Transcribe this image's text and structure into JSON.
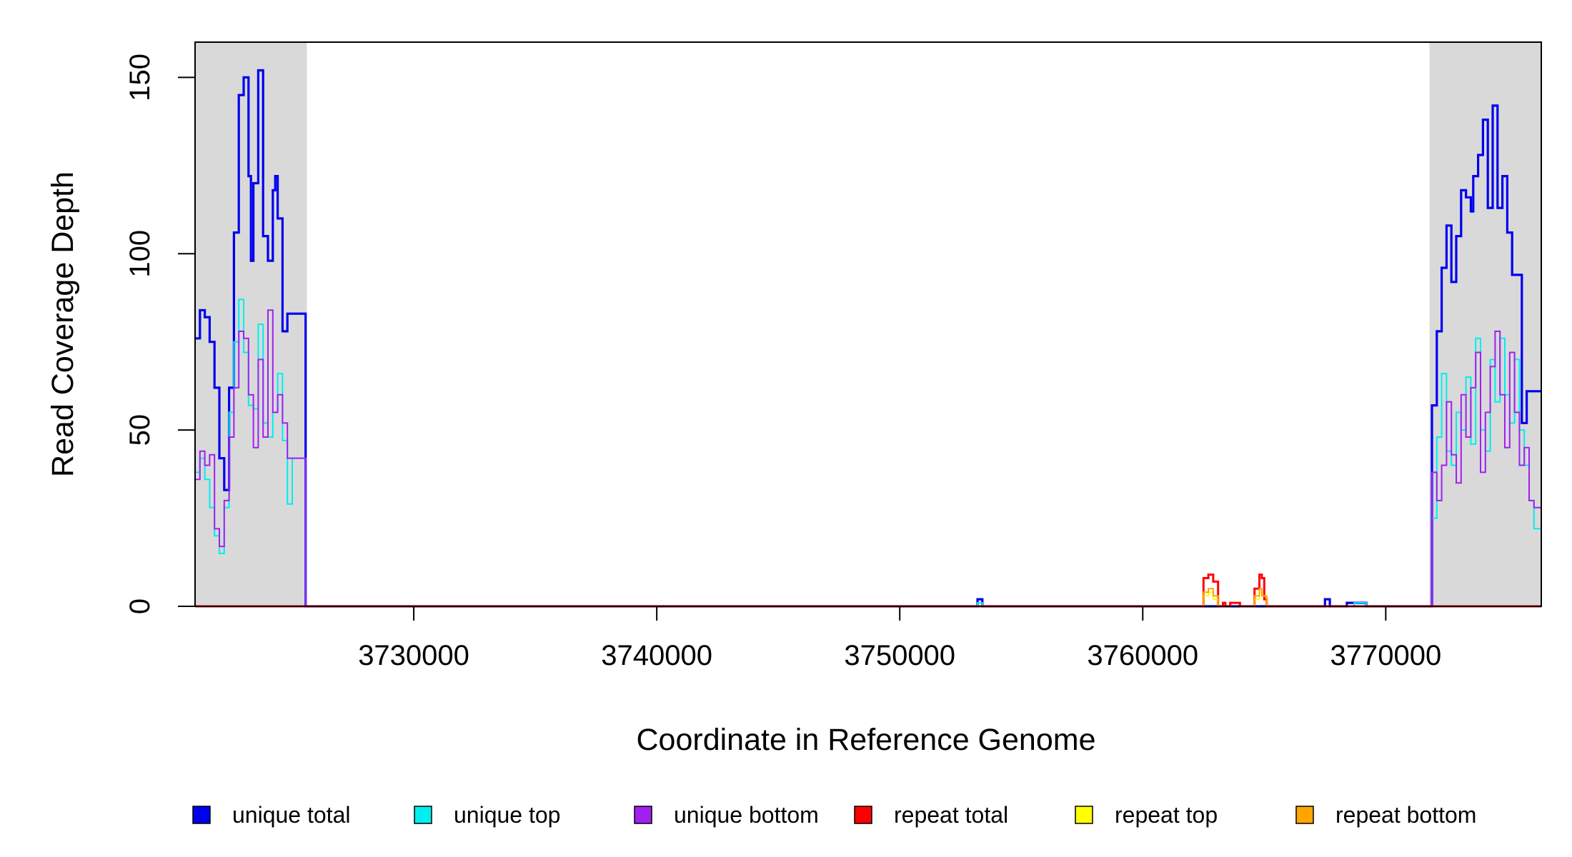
{
  "chart_data": {
    "type": "line",
    "xlabel": "Coordinate in Reference Genome",
    "ylabel": "Read Coverage Depth",
    "xlim": [
      3721000,
      3776400
    ],
    "ylim": [
      0,
      160
    ],
    "x_ticks": [
      3730000,
      3740000,
      3750000,
      3760000,
      3770000
    ],
    "x_tick_labels": [
      "3730000",
      "3740000",
      "3750000",
      "3760000",
      "3770000"
    ],
    "y_ticks": [
      0,
      50,
      100,
      150
    ],
    "y_tick_labels": [
      "0",
      "50",
      "100",
      "150"
    ],
    "grid": false,
    "shaded_regions": [
      {
        "x_start": 3721000,
        "x_end": 3725600,
        "color": "#d9d9d9"
      },
      {
        "x_start": 3771800,
        "x_end": 3776400,
        "color": "#d9d9d9"
      }
    ],
    "legend_position": "bottom",
    "series": [
      {
        "name": "unique total",
        "color": "#0000ee",
        "x": [
          3721000,
          3721200,
          3721400,
          3721600,
          3721800,
          3722000,
          3722200,
          3722400,
          3722600,
          3722800,
          3723000,
          3723200,
          3723300,
          3723400,
          3723600,
          3723800,
          3724000,
          3724200,
          3724300,
          3724400,
          3724600,
          3724800,
          3725000,
          3725200,
          3725400,
          3725500,
          3725550,
          3725650,
          3753000,
          3753200,
          3753400,
          3753600,
          3767400,
          3767500,
          3767700,
          3768400,
          3769000,
          3769200,
          3771800,
          3771900,
          3772100,
          3772300,
          3772500,
          3772700,
          3772900,
          3773100,
          3773300,
          3773500,
          3773600,
          3773800,
          3774000,
          3774200,
          3774400,
          3774600,
          3774800,
          3775000,
          3775200,
          3775400,
          3775600,
          3775800,
          3776000,
          3776200,
          3776400
        ],
        "y": [
          76,
          84,
          82,
          75,
          62,
          42,
          33,
          62,
          106,
          145,
          150,
          122,
          98,
          120,
          152,
          105,
          98,
          118,
          122,
          110,
          78,
          83,
          83,
          83,
          83,
          83,
          0,
          0,
          0,
          2,
          0,
          0,
          0,
          2,
          0,
          1,
          1,
          0,
          0,
          57,
          78,
          96,
          108,
          92,
          105,
          118,
          116,
          112,
          122,
          128,
          138,
          113,
          142,
          113,
          122,
          106,
          94,
          94,
          52,
          61,
          61,
          61,
          61
        ]
      },
      {
        "name": "unique top",
        "color": "#00eeee",
        "x": [
          3721000,
          3721200,
          3721400,
          3721600,
          3721800,
          3722000,
          3722200,
          3722400,
          3722600,
          3722800,
          3723000,
          3723200,
          3723400,
          3723600,
          3723800,
          3724000,
          3724200,
          3724400,
          3724600,
          3724800,
          3725000,
          3725200,
          3725400,
          3725550,
          3725650,
          3753000,
          3753200,
          3753400,
          3768500,
          3768700,
          3769000,
          3769200,
          3771800,
          3771900,
          3772100,
          3772300,
          3772500,
          3772700,
          3772900,
          3773100,
          3773300,
          3773500,
          3773700,
          3773900,
          3774100,
          3774300,
          3774500,
          3774700,
          3774900,
          3775100,
          3775300,
          3775500,
          3775700,
          3775900,
          3776100,
          3776200,
          3776400
        ],
        "y": [
          38,
          42,
          36,
          28,
          20,
          15,
          28,
          55,
          75,
          87,
          72,
          57,
          56,
          80,
          52,
          48,
          55,
          66,
          47,
          29,
          42,
          42,
          42,
          0,
          0,
          0,
          1,
          0,
          0,
          1,
          1,
          0,
          0,
          25,
          48,
          66,
          44,
          40,
          55,
          50,
          65,
          46,
          76,
          50,
          44,
          70,
          58,
          76,
          60,
          52,
          70,
          50,
          40,
          30,
          22,
          22,
          22
        ]
      },
      {
        "name": "unique bottom",
        "color": "#a020f0",
        "x": [
          3721000,
          3721200,
          3721400,
          3721600,
          3721800,
          3722000,
          3722200,
          3722400,
          3722600,
          3722800,
          3723000,
          3723200,
          3723400,
          3723600,
          3723800,
          3724000,
          3724200,
          3724400,
          3724600,
          3724800,
          3725000,
          3725200,
          3725400,
          3725550,
          3725650,
          3771800,
          3771900,
          3772100,
          3772300,
          3772500,
          3772700,
          3772900,
          3773100,
          3773300,
          3773500,
          3773700,
          3773900,
          3774100,
          3774300,
          3774500,
          3774700,
          3774900,
          3775100,
          3775300,
          3775500,
          3775700,
          3775900,
          3776100,
          3776200,
          3776400
        ],
        "y": [
          36,
          44,
          40,
          43,
          22,
          17,
          30,
          48,
          62,
          78,
          76,
          60,
          45,
          70,
          48,
          84,
          55,
          60,
          52,
          42,
          42,
          42,
          42,
          0,
          0,
          0,
          38,
          30,
          40,
          58,
          43,
          35,
          60,
          48,
          62,
          72,
          38,
          55,
          68,
          78,
          60,
          45,
          72,
          55,
          40,
          45,
          30,
          28,
          28,
          28
        ]
      },
      {
        "name": "repeat total",
        "color": "#ff0000",
        "x": [
          3721000,
          3762400,
          3762500,
          3762700,
          3762900,
          3763100,
          3763300,
          3763400,
          3763600,
          3763800,
          3764000,
          3764500,
          3764600,
          3764800,
          3764900,
          3765000,
          3765100,
          3776400
        ],
        "y": [
          0,
          0,
          8,
          9,
          7,
          0,
          1,
          0,
          1,
          1,
          0,
          0,
          5,
          9,
          8,
          2,
          0,
          0
        ]
      },
      {
        "name": "repeat top",
        "color": "#ffff00",
        "x": [
          3721000,
          3762400,
          3762500,
          3762700,
          3762900,
          3763100,
          3764500,
          3764600,
          3764800,
          3764900,
          3765100,
          3776400
        ],
        "y": [
          0,
          0,
          3,
          4,
          2,
          0,
          0,
          2,
          4,
          3,
          0,
          0
        ]
      },
      {
        "name": "repeat bottom",
        "color": "#ffa500",
        "x": [
          3721000,
          3762400,
          3762500,
          3762700,
          3762900,
          3763100,
          3764500,
          3764600,
          3764800,
          3764900,
          3765100,
          3776400
        ],
        "y": [
          0,
          0,
          4,
          5,
          3,
          0,
          0,
          3,
          5,
          3,
          0,
          0
        ]
      }
    ]
  }
}
